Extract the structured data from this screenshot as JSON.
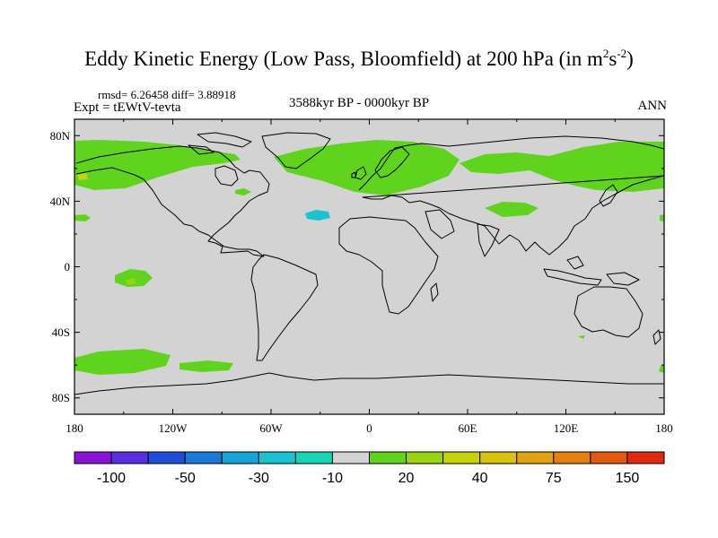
{
  "title": {
    "main": "Eddy Kinetic Energy (Low Pass, Bloomfield) at 200 hPa (in m",
    "sup1": "2",
    "mid": "s",
    "sup2": "-2",
    "close": ")"
  },
  "stats": "rmsd= 6.26458 diff= 3.88918",
  "expt": "Expt = tEWtV-tevta",
  "period": "3588kyr BP - 0000kyr BP",
  "season": "ANN",
  "map": {
    "background_color": "#d3d3d3",
    "lat_labels": [
      "80N",
      "40N",
      "0",
      "40S",
      "80S"
    ],
    "lat_values": [
      80,
      40,
      0,
      -40,
      -80
    ],
    "lon_labels": [
      "180",
      "120W",
      "60W",
      "0",
      "60E",
      "120E",
      "180"
    ],
    "lon_values": [
      -180,
      -120,
      -60,
      0,
      60,
      120,
      180
    ],
    "lat_range": [
      -90,
      90
    ],
    "lon_range": [
      -180,
      180
    ]
  },
  "colorbar": {
    "colors": [
      "#8a13d6",
      "#5a2fe0",
      "#1f4fd8",
      "#1a78d6",
      "#16a3d8",
      "#19c3d2",
      "#14d6b4",
      "#d3d3d3",
      "#5fd31e",
      "#9ad40f",
      "#c6d20c",
      "#d9c20c",
      "#e0a30f",
      "#e3800f",
      "#e25a10",
      "#e02a10"
    ],
    "labels": [
      "-100",
      "-50",
      "-30",
      "-10",
      "20",
      "40",
      "75",
      "150"
    ],
    "label_boundaries": [
      2,
      4,
      6,
      8,
      10,
      12,
      14,
      16
    ]
  }
}
